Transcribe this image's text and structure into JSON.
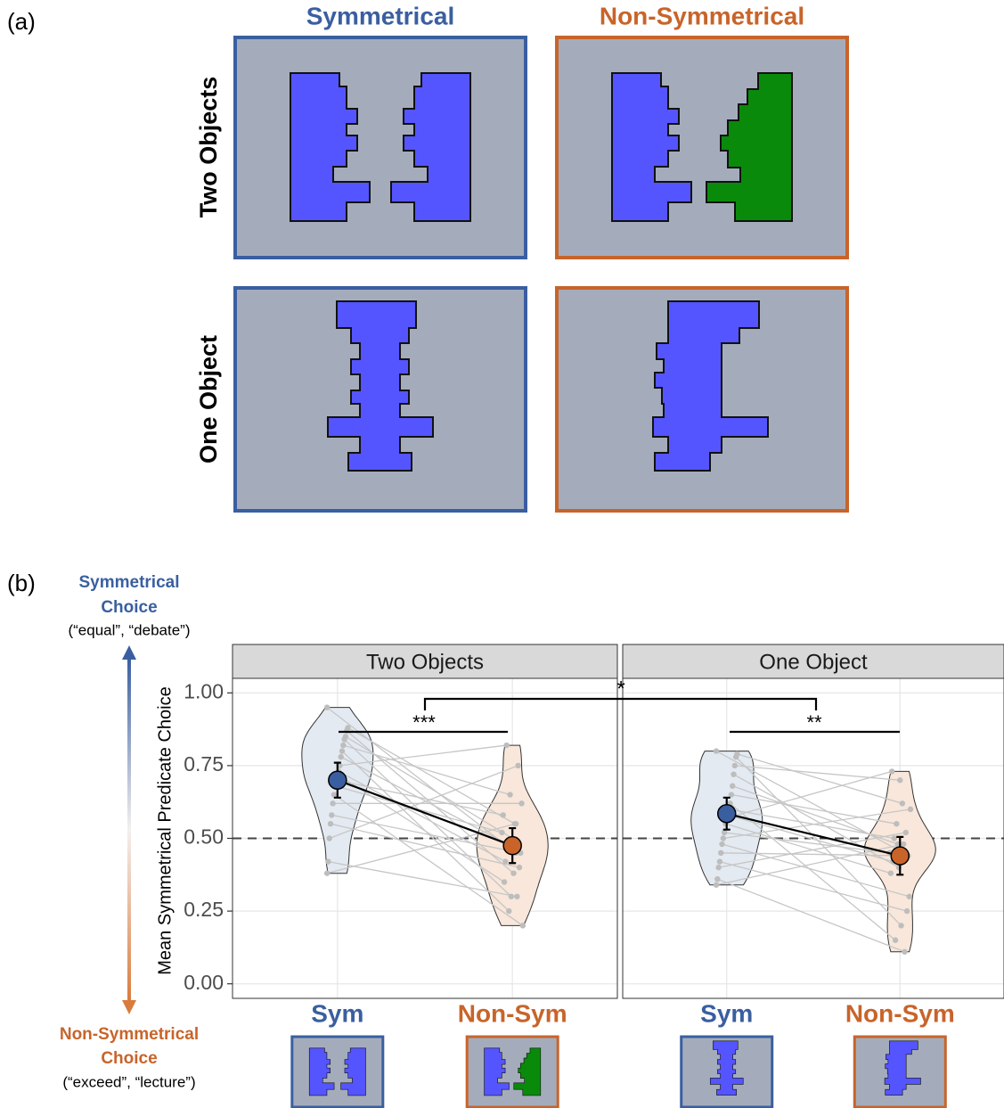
{
  "panel_a": {
    "label": "(a)",
    "columns": [
      "Symmetrical",
      "Non-Symmetrical"
    ],
    "rows": [
      "Two Objects",
      "One Object"
    ]
  },
  "panel_b": {
    "label": "(b)",
    "top_guide": [
      "Symmetrical",
      "Choice"
    ],
    "top_examples": "(“equal”, “debate”)",
    "bottom_guide": [
      "Non-Symmetrical",
      "Choice"
    ],
    "bottom_examples": "(“exceed”, “lecture”)"
  },
  "chart_data": {
    "type": "violin",
    "y_label": "Mean Symmetrical Predicate Choice",
    "ylim": [
      -0.05,
      1.05
    ],
    "yticks": [
      {
        "value": 0,
        "label": "0.00"
      },
      0.25,
      {
        "value": 0.5,
        "label": "0.50"
      },
      0.75,
      {
        "value": 1,
        "label": "1.00"
      }
    ],
    "grid": true,
    "reference_line": 0.5,
    "colors": [
      "#3a5fa0",
      "#c8642a"
    ],
    "annotations": [
      "***",
      "**",
      "*"
    ],
    "facets": [
      {
        "title": "Two Objects",
        "categories": [
          "Sym",
          "Non-Sym"
        ],
        "conditions": [
          {
            "mean": 0.7,
            "error": 0.06,
            "points": [
              0.95,
              0.88,
              0.87,
              0.85,
              0.84,
              0.82,
              0.8,
              0.78,
              0.75,
              0.73,
              0.72,
              0.7,
              0.68,
              0.65,
              0.62,
              0.58,
              0.55,
              0.5,
              0.42,
              0.38
            ]
          },
          {
            "mean": 0.475,
            "error": 0.06,
            "points": [
              0.45,
              0.55,
              0.38,
              0.5,
              0.3,
              0.65,
              0.25,
              0.48,
              0.82,
              0.42,
              0.35,
              0.58,
              0.52,
              0.2,
              0.62,
              0.45,
              0.4,
              0.75,
              0.3,
              0.55
            ]
          }
        ]
      },
      {
        "title": "One Object",
        "categories": [
          "Sym",
          "Non-Sym"
        ],
        "conditions": [
          {
            "mean": 0.585,
            "error": 0.055,
            "points": [
              0.8,
              0.79,
              0.78,
              0.75,
              0.72,
              0.68,
              0.65,
              0.62,
              0.6,
              0.58,
              0.57,
              0.55,
              0.52,
              0.5,
              0.48,
              0.45,
              0.42,
              0.4,
              0.36,
              0.34
            ]
          },
          {
            "mean": 0.44,
            "error": 0.065,
            "points": [
              0.45,
              0.62,
              0.2,
              0.7,
              0.4,
              0.48,
              0.55,
              0.15,
              0.5,
              0.42,
              0.73,
              0.38,
              0.45,
              0.6,
              0.3,
              0.44,
              0.25,
              0.52,
              0.11,
              0.48
            ]
          }
        ]
      }
    ]
  }
}
